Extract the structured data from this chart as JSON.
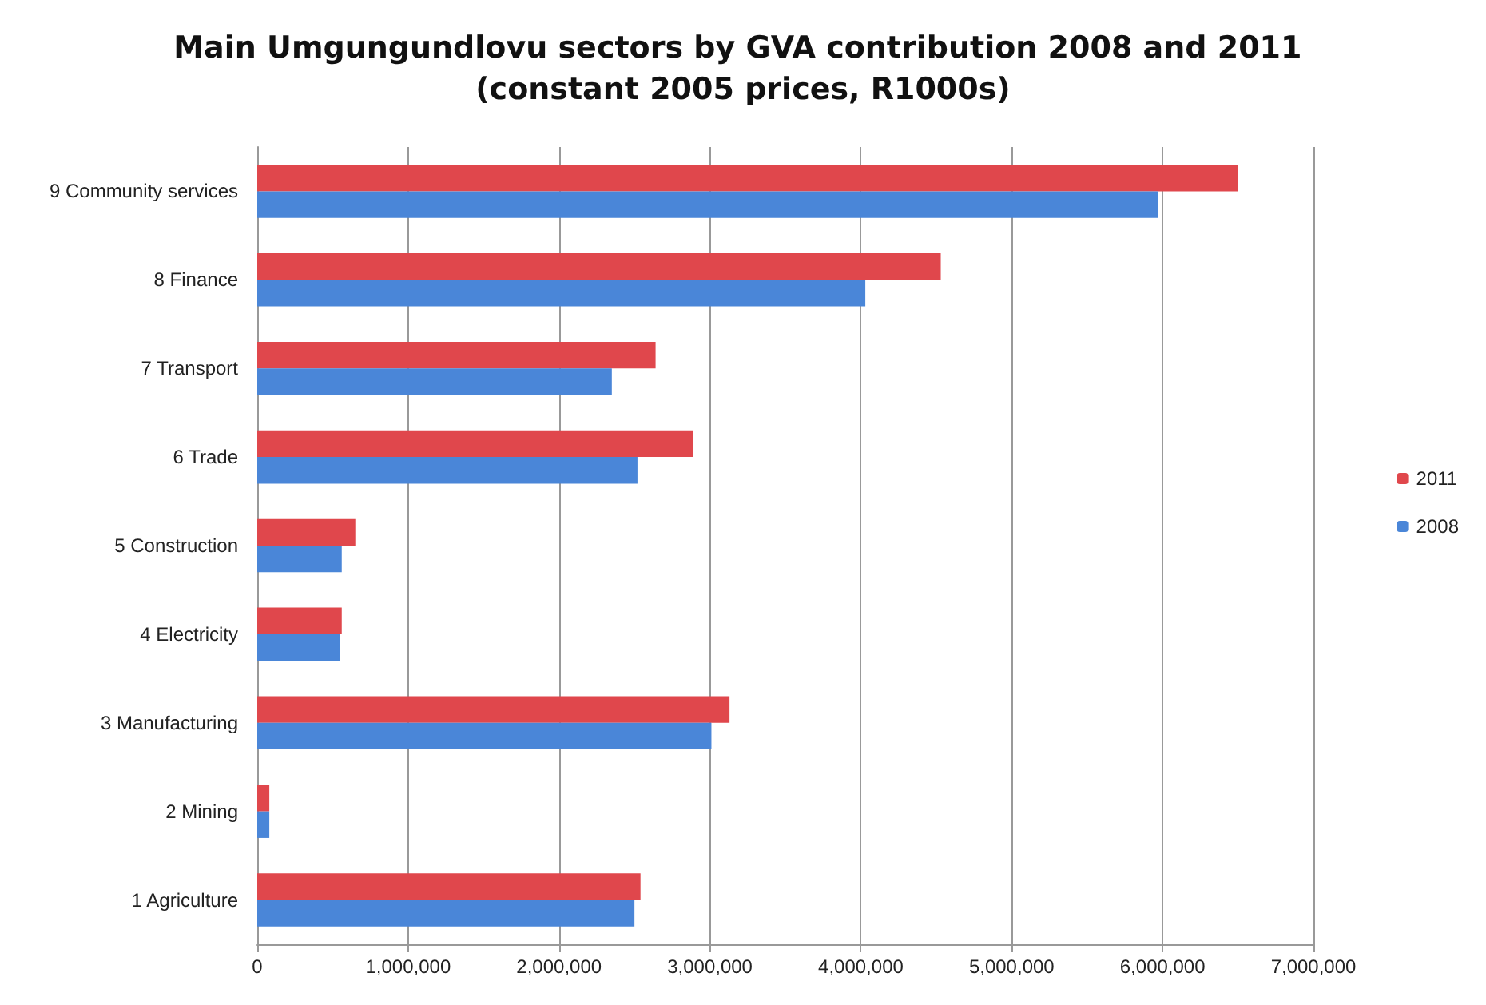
{
  "chart_data": {
    "type": "bar",
    "orientation": "horizontal",
    "title": "Main Umgungundlovu sectors by GVA contribution 2008 and 2011 (constant 2005 prices, R1000s)",
    "categories": [
      "9 Community services",
      "8 Finance",
      "7 Transport",
      "6 Trade",
      "5 Construction",
      "4 Electricity",
      "3 Manufacturing",
      "2 Mining",
      "1 Agriculture"
    ],
    "series": [
      {
        "name": "2011",
        "color": "#e0474c",
        "values": [
          6500000,
          4530000,
          2640000,
          2890000,
          650000,
          560000,
          3130000,
          80000,
          2540000
        ]
      },
      {
        "name": "2008",
        "color": "#4a86d8",
        "values": [
          5970000,
          4030000,
          2350000,
          2520000,
          560000,
          550000,
          3010000,
          80000,
          2500000
        ]
      }
    ],
    "xlim": [
      0,
      7000000
    ],
    "xticks": [
      0,
      {
        "value": 1000000,
        "label": "1,000,000"
      },
      {
        "value": 2000000,
        "label": "2,000,000"
      },
      {
        "value": 3000000,
        "label": "3,000,000"
      },
      {
        "value": 4000000,
        "label": "4,000,000"
      },
      {
        "value": 5000000,
        "label": "5,000,000"
      },
      {
        "value": 6000000,
        "label": "6,000,000"
      },
      {
        "value": 7000000,
        "label": "7,000,000"
      }
    ],
    "grid": "x",
    "legend": "right"
  }
}
